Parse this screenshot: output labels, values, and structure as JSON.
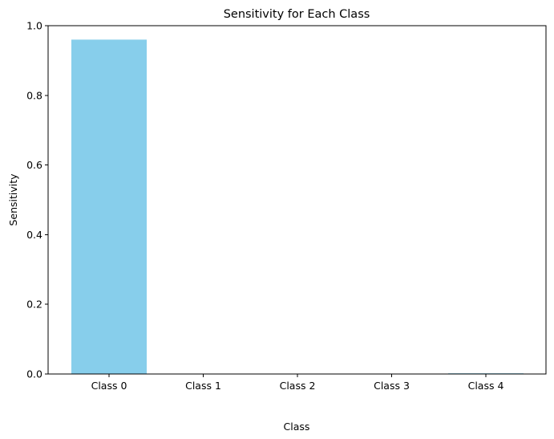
{
  "chart_data": {
    "type": "bar",
    "title": "Sensitivity for Each Class",
    "xlabel": "Class",
    "ylabel": "Sensitivity",
    "categories": [
      "Class 0",
      "Class 1",
      "Class 2",
      "Class 3",
      "Class 4"
    ],
    "values": [
      0.96,
      0.0,
      0.0,
      0.0,
      0.002
    ],
    "ylim": [
      0,
      1.0
    ],
    "yticks": [
      "0.0",
      "0.2",
      "0.4",
      "0.6",
      "0.8",
      "1.0"
    ],
    "bar_color": "#87CEEB",
    "grid": false,
    "legend": "none"
  }
}
